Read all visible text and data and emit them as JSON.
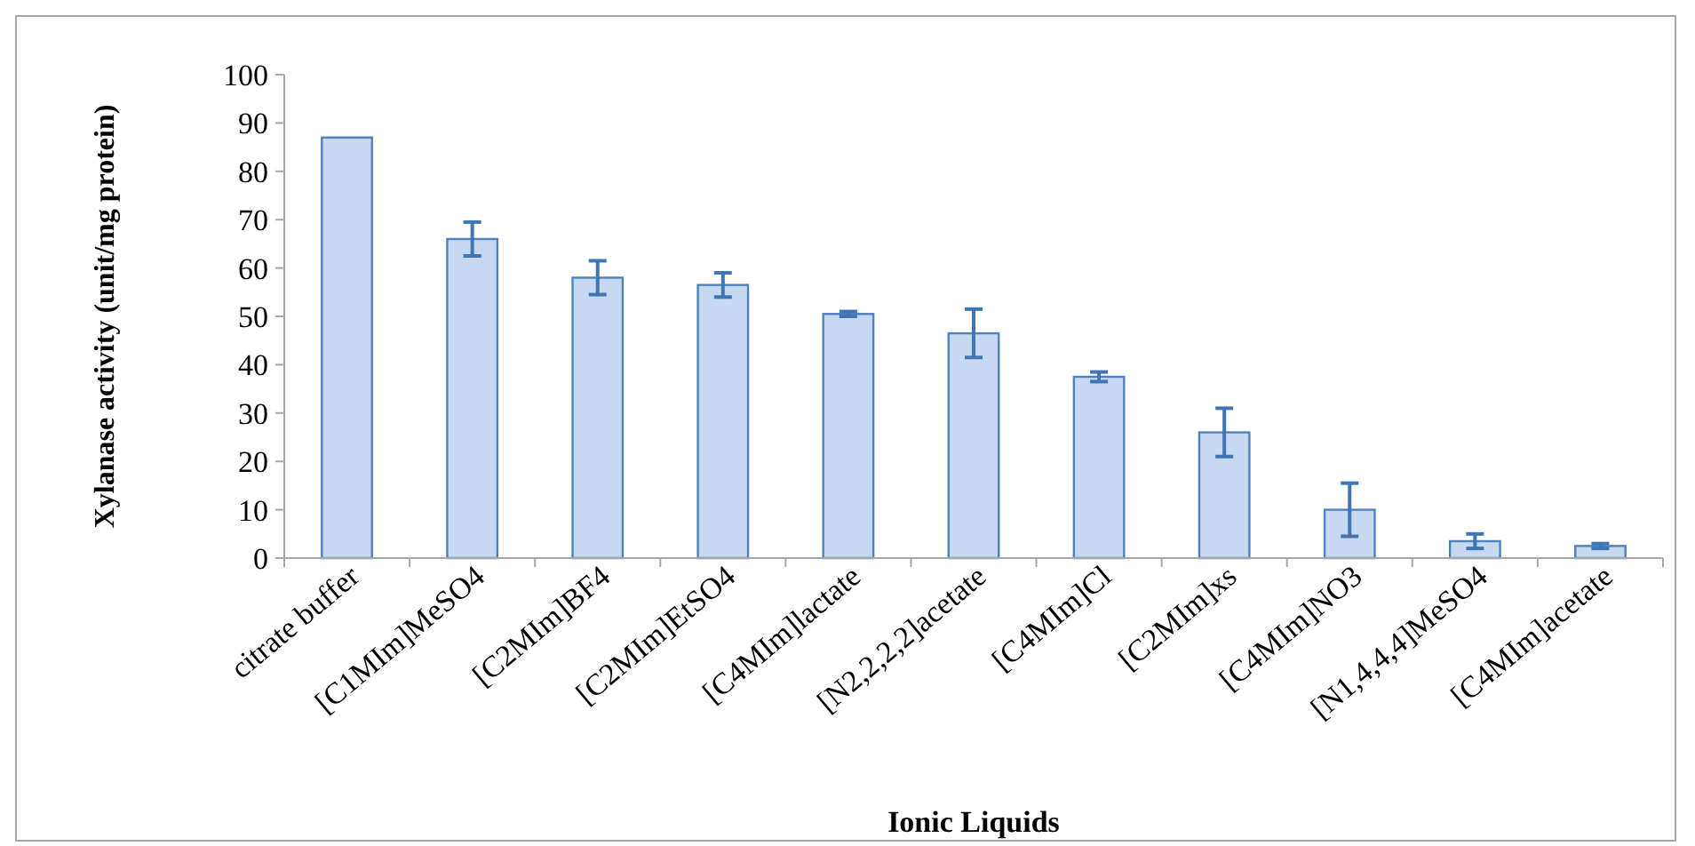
{
  "chart_data": {
    "type": "bar",
    "xlabel": "Ionic Liquids",
    "ylabel": "Xylanase activity (unit/mg protein)",
    "categories": [
      "citrate buffer",
      "[C1MIm]MeSO4",
      "[C2MIm]BF4",
      "[C2MIm]EtSO4",
      "[C4MIm]lactate",
      "[N2,2,2,2]acetate",
      "[C4MIm]Cl",
      "[C2MIm]xs",
      "[C4MIm]NO3",
      "[N1,4,4,4]MeSO4",
      "[C4MIm]acetate"
    ],
    "values": [
      87,
      66,
      58,
      56.5,
      50.5,
      46.5,
      37.5,
      26,
      10,
      3.5,
      2.5
    ],
    "errors": [
      null,
      3.5,
      3.5,
      2.5,
      0.5,
      5,
      1,
      5,
      5.5,
      1.5,
      0.5
    ],
    "color": "#c6d9f1",
    "ylim": [
      0,
      100
    ],
    "yticks": [
      0,
      10,
      20,
      30,
      40,
      50,
      60,
      70,
      80,
      90,
      100
    ]
  }
}
